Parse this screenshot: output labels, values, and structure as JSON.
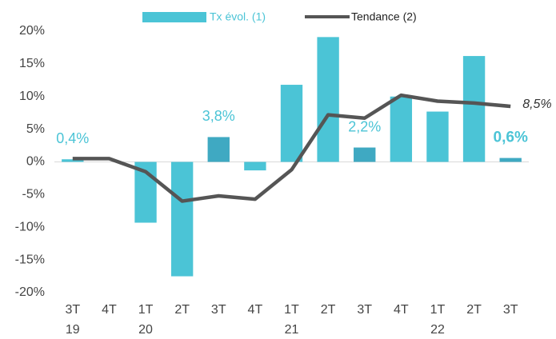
{
  "chart_data": {
    "type": "bar_line",
    "categories": [
      "3T\n19",
      "4T",
      "1T\n20",
      "2T",
      "3T",
      "4T",
      "1T\n21",
      "2T",
      "3T",
      "4T",
      "1T\n22",
      "2T",
      "3T"
    ],
    "series": [
      {
        "name": "Tx évol. (1)",
        "type": "bar",
        "color": "#4bc4d6",
        "colors": [
          "#4bc4d6",
          "#4bc4d6",
          "#4bc4d6",
          "#4bc4d6",
          "#3fa9c2",
          "#4bc4d6",
          "#4bc4d6",
          "#4bc4d6",
          "#3fa9c2",
          "#4bc4d6",
          "#4bc4d6",
          "#4bc4d6",
          "#3fa9c2"
        ],
        "values": [
          0.4,
          0,
          -9.3,
          -17.5,
          3.8,
          -1.3,
          11.8,
          19.1,
          2.2,
          10.0,
          7.7,
          16.2,
          0.6
        ],
        "value_labels": [
          "0,4%",
          null,
          null,
          null,
          "3,8%",
          null,
          null,
          null,
          "2,2%",
          null,
          null,
          null,
          "0,6%"
        ]
      },
      {
        "name": "Tendance (2)",
        "type": "line",
        "color": "#555555",
        "values": [
          0.5,
          0.5,
          -1.5,
          -6.0,
          -5.2,
          -5.7,
          -1.2,
          7.2,
          6.7,
          10.2,
          9.3,
          9.0,
          8.5
        ],
        "value_labels": [
          null,
          null,
          null,
          null,
          null,
          null,
          null,
          null,
          null,
          null,
          null,
          null,
          "8,5%"
        ]
      }
    ],
    "ylim": [
      -20,
      20
    ],
    "yticks": [
      {
        "value": -20,
        "label": "-20%"
      },
      {
        "value": -15,
        "label": "-15%"
      },
      {
        "value": -10,
        "label": "-10%"
      },
      {
        "value": -5,
        "label": "-5%"
      },
      {
        "value": 0,
        "label": "0%"
      },
      {
        "value": 5,
        "label": "5%"
      },
      {
        "value": 10,
        "label": "10%"
      },
      {
        "value": 15,
        "label": "15%"
      },
      {
        "value": 20,
        "label": "20%"
      }
    ],
    "legend": "top"
  }
}
